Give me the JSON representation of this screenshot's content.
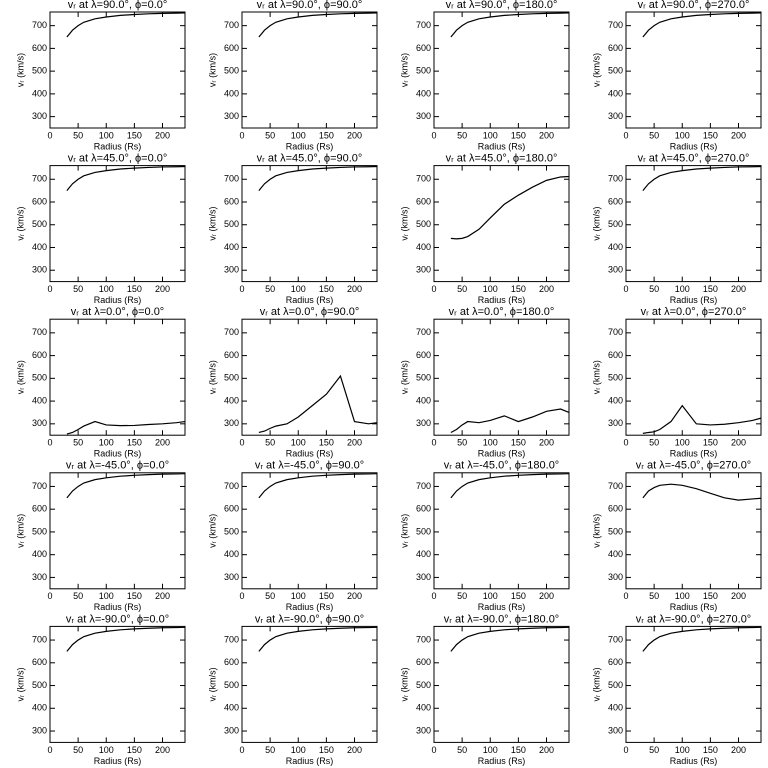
{
  "chart_data": [
    {
      "type": "line",
      "title": "vᵣ at λ=90.0°, ϕ=0.0°",
      "x_label": "Radius (Rs)",
      "y_label": "vᵣ (km/s)",
      "x": [
        30,
        40,
        50,
        60,
        80,
        100,
        125,
        150,
        175,
        200,
        225,
        240
      ],
      "series": [
        {
          "color": "#000000",
          "values": [
            650,
            680,
            700,
            715,
            730,
            738,
            745,
            749,
            752,
            754,
            755,
            756
          ]
        }
      ],
      "xlim": [
        0,
        240
      ],
      "ylim": [
        250,
        760
      ],
      "xticks": [
        0,
        50,
        100,
        150,
        200
      ],
      "yticks": [
        300,
        400,
        500,
        600,
        700
      ]
    },
    {
      "type": "line",
      "title": "vᵣ at λ=90.0°, ϕ=90.0°",
      "x_label": "Radius (Rs)",
      "y_label": "vᵣ (km/s)",
      "x": [
        30,
        40,
        50,
        60,
        80,
        100,
        125,
        150,
        175,
        200,
        225,
        240
      ],
      "series": [
        {
          "color": "#000000",
          "values": [
            650,
            680,
            700,
            715,
            730,
            738,
            745,
            749,
            752,
            754,
            755,
            756
          ]
        }
      ],
      "xlim": [
        0,
        240
      ],
      "ylim": [
        250,
        760
      ],
      "xticks": [
        0,
        50,
        100,
        150,
        200
      ],
      "yticks": [
        300,
        400,
        500,
        600,
        700
      ]
    },
    {
      "type": "line",
      "title": "vᵣ at λ=90.0°, ϕ=180.0°",
      "x_label": "Radius (Rs)",
      "y_label": "vᵣ (km/s)",
      "x": [
        30,
        40,
        50,
        60,
        80,
        100,
        125,
        150,
        175,
        200,
        225,
        240
      ],
      "series": [
        {
          "color": "#000000",
          "values": [
            650,
            680,
            700,
            715,
            730,
            738,
            745,
            749,
            752,
            754,
            755,
            756
          ]
        }
      ],
      "xlim": [
        0,
        240
      ],
      "ylim": [
        250,
        760
      ],
      "xticks": [
        0,
        50,
        100,
        150,
        200
      ],
      "yticks": [
        300,
        400,
        500,
        600,
        700
      ]
    },
    {
      "type": "line",
      "title": "vᵣ at λ=90.0°, ϕ=270.0°",
      "x_label": "Radius (Rs)",
      "y_label": "vᵣ (km/s)",
      "x": [
        30,
        40,
        50,
        60,
        80,
        100,
        125,
        150,
        175,
        200,
        225,
        240
      ],
      "series": [
        {
          "color": "#000000",
          "values": [
            650,
            680,
            700,
            715,
            730,
            738,
            745,
            749,
            752,
            754,
            755,
            756
          ]
        }
      ],
      "xlim": [
        0,
        240
      ],
      "ylim": [
        250,
        760
      ],
      "xticks": [
        0,
        50,
        100,
        150,
        200
      ],
      "yticks": [
        300,
        400,
        500,
        600,
        700
      ]
    },
    {
      "type": "line",
      "title": "vᵣ at λ=45.0°, ϕ=0.0°",
      "x_label": "Radius (Rs)",
      "y_label": "vᵣ (km/s)",
      "x": [
        30,
        40,
        50,
        60,
        80,
        100,
        125,
        150,
        175,
        200,
        225,
        240
      ],
      "series": [
        {
          "color": "#000000",
          "values": [
            650,
            680,
            700,
            715,
            730,
            738,
            745,
            749,
            752,
            754,
            755,
            756
          ]
        }
      ],
      "xlim": [
        0,
        240
      ],
      "ylim": [
        250,
        760
      ],
      "xticks": [
        0,
        50,
        100,
        150,
        200
      ],
      "yticks": [
        300,
        400,
        500,
        600,
        700
      ]
    },
    {
      "type": "line",
      "title": "vᵣ at λ=45.0°, ϕ=90.0°",
      "x_label": "Radius (Rs)",
      "y_label": "vᵣ (km/s)",
      "x": [
        30,
        40,
        50,
        60,
        80,
        100,
        125,
        150,
        175,
        200,
        225,
        240
      ],
      "series": [
        {
          "color": "#000000",
          "values": [
            650,
            680,
            700,
            715,
            730,
            738,
            745,
            749,
            752,
            754,
            755,
            756
          ]
        }
      ],
      "xlim": [
        0,
        240
      ],
      "ylim": [
        250,
        760
      ],
      "xticks": [
        0,
        50,
        100,
        150,
        200
      ],
      "yticks": [
        300,
        400,
        500,
        600,
        700
      ]
    },
    {
      "type": "line",
      "title": "vᵣ at λ=45.0°, ϕ=180.0°",
      "x_label": "Radius (Rs)",
      "y_label": "vᵣ (km/s)",
      "x": [
        30,
        40,
        50,
        60,
        80,
        100,
        125,
        150,
        175,
        200,
        225,
        240
      ],
      "series": [
        {
          "color": "#000000",
          "values": [
            440,
            438,
            440,
            448,
            480,
            530,
            590,
            630,
            665,
            695,
            710,
            712
          ]
        }
      ],
      "xlim": [
        0,
        240
      ],
      "ylim": [
        250,
        760
      ],
      "xticks": [
        0,
        50,
        100,
        150,
        200
      ],
      "yticks": [
        300,
        400,
        500,
        600,
        700
      ]
    },
    {
      "type": "line",
      "title": "vᵣ at λ=45.0°, ϕ=270.0°",
      "x_label": "Radius (Rs)",
      "y_label": "vᵣ (km/s)",
      "x": [
        30,
        40,
        50,
        60,
        80,
        100,
        125,
        150,
        175,
        200,
        225,
        240
      ],
      "series": [
        {
          "color": "#000000",
          "values": [
            650,
            680,
            700,
            715,
            730,
            738,
            745,
            749,
            752,
            754,
            755,
            756
          ]
        }
      ],
      "xlim": [
        0,
        240
      ],
      "ylim": [
        250,
        760
      ],
      "xticks": [
        0,
        50,
        100,
        150,
        200
      ],
      "yticks": [
        300,
        400,
        500,
        600,
        700
      ]
    },
    {
      "type": "line",
      "title": "vᵣ at λ=0.0°, ϕ=0.0°",
      "x_label": "Radius (Rs)",
      "y_label": "vᵣ (km/s)",
      "x": [
        30,
        40,
        50,
        60,
        80,
        100,
        125,
        150,
        175,
        200,
        225,
        240
      ],
      "series": [
        {
          "color": "#000000",
          "values": [
            255,
            262,
            275,
            290,
            310,
            295,
            292,
            293,
            297,
            300,
            305,
            310
          ]
        }
      ],
      "xlim": [
        0,
        240
      ],
      "ylim": [
        250,
        760
      ],
      "xticks": [
        0,
        50,
        100,
        150,
        200
      ],
      "yticks": [
        300,
        400,
        500,
        600,
        700
      ]
    },
    {
      "type": "line",
      "title": "vᵣ at λ=0.0°, ϕ=90.0°",
      "x_label": "Radius (Rs)",
      "y_label": "vᵣ (km/s)",
      "x": [
        30,
        40,
        50,
        60,
        80,
        100,
        125,
        150,
        175,
        200,
        225,
        240
      ],
      "series": [
        {
          "color": "#000000",
          "values": [
            262,
            268,
            280,
            290,
            300,
            330,
            380,
            430,
            510,
            310,
            300,
            305
          ]
        }
      ],
      "xlim": [
        0,
        240
      ],
      "ylim": [
        250,
        760
      ],
      "xticks": [
        0,
        50,
        100,
        150,
        200
      ],
      "yticks": [
        300,
        400,
        500,
        600,
        700
      ]
    },
    {
      "type": "line",
      "title": "vᵣ at λ=0.0°, ϕ=180.0°",
      "x_label": "Radius (Rs)",
      "y_label": "vᵣ (km/s)",
      "x": [
        30,
        40,
        50,
        60,
        80,
        100,
        125,
        150,
        175,
        200,
        225,
        240
      ],
      "series": [
        {
          "color": "#000000",
          "values": [
            262,
            275,
            295,
            310,
            305,
            315,
            335,
            310,
            330,
            355,
            365,
            350
          ]
        }
      ],
      "xlim": [
        0,
        240
      ],
      "ylim": [
        250,
        760
      ],
      "xticks": [
        0,
        50,
        100,
        150,
        200
      ],
      "yticks": [
        300,
        400,
        500,
        600,
        700
      ]
    },
    {
      "type": "line",
      "title": "vᵣ at λ=0.0°, ϕ=270.0°",
      "x_label": "Radius (Rs)",
      "y_label": "vᵣ (km/s)",
      "x": [
        30,
        40,
        50,
        60,
        80,
        100,
        125,
        150,
        175,
        200,
        225,
        240
      ],
      "series": [
        {
          "color": "#000000",
          "values": [
            258,
            262,
            265,
            275,
            310,
            380,
            300,
            295,
            298,
            305,
            315,
            325
          ]
        }
      ],
      "xlim": [
        0,
        240
      ],
      "ylim": [
        250,
        760
      ],
      "xticks": [
        0,
        50,
        100,
        150,
        200
      ],
      "yticks": [
        300,
        400,
        500,
        600,
        700
      ]
    },
    {
      "type": "line",
      "title": "vᵣ at λ=-45.0°, ϕ=0.0°",
      "x_label": "Radius (Rs)",
      "y_label": "vᵣ (km/s)",
      "x": [
        30,
        40,
        50,
        60,
        80,
        100,
        125,
        150,
        175,
        200,
        225,
        240
      ],
      "series": [
        {
          "color": "#000000",
          "values": [
            650,
            680,
            700,
            715,
            730,
            738,
            745,
            749,
            752,
            754,
            755,
            756
          ]
        }
      ],
      "xlim": [
        0,
        240
      ],
      "ylim": [
        250,
        760
      ],
      "xticks": [
        0,
        50,
        100,
        150,
        200
      ],
      "yticks": [
        300,
        400,
        500,
        600,
        700
      ]
    },
    {
      "type": "line",
      "title": "vᵣ at λ=-45.0°, ϕ=90.0°",
      "x_label": "Radius (Rs)",
      "y_label": "vᵣ (km/s)",
      "x": [
        30,
        40,
        50,
        60,
        80,
        100,
        125,
        150,
        175,
        200,
        225,
        240
      ],
      "series": [
        {
          "color": "#000000",
          "values": [
            650,
            680,
            700,
            715,
            730,
            738,
            745,
            749,
            752,
            754,
            755,
            756
          ]
        }
      ],
      "xlim": [
        0,
        240
      ],
      "ylim": [
        250,
        760
      ],
      "xticks": [
        0,
        50,
        100,
        150,
        200
      ],
      "yticks": [
        300,
        400,
        500,
        600,
        700
      ]
    },
    {
      "type": "line",
      "title": "vᵣ at λ=-45.0°, ϕ=180.0°",
      "x_label": "Radius (Rs)",
      "y_label": "vᵣ (km/s)",
      "x": [
        30,
        40,
        50,
        60,
        80,
        100,
        125,
        150,
        175,
        200,
        225,
        240
      ],
      "series": [
        {
          "color": "#000000",
          "values": [
            650,
            680,
            700,
            715,
            730,
            738,
            745,
            749,
            752,
            754,
            755,
            756
          ]
        }
      ],
      "xlim": [
        0,
        240
      ],
      "ylim": [
        250,
        760
      ],
      "xticks": [
        0,
        50,
        100,
        150,
        200
      ],
      "yticks": [
        300,
        400,
        500,
        600,
        700
      ]
    },
    {
      "type": "line",
      "title": "vᵣ at λ=-45.0°, ϕ=270.0°",
      "x_label": "Radius (Rs)",
      "y_label": "vᵣ (km/s)",
      "x": [
        30,
        40,
        50,
        60,
        80,
        100,
        125,
        150,
        175,
        200,
        225,
        240
      ],
      "series": [
        {
          "color": "#000000",
          "values": [
            650,
            680,
            695,
            705,
            710,
            705,
            690,
            670,
            650,
            640,
            645,
            648
          ]
        }
      ],
      "xlim": [
        0,
        240
      ],
      "ylim": [
        250,
        760
      ],
      "xticks": [
        0,
        50,
        100,
        150,
        200
      ],
      "yticks": [
        300,
        400,
        500,
        600,
        700
      ]
    },
    {
      "type": "line",
      "title": "vᵣ at λ=-90.0°, ϕ=0.0°",
      "x_label": "Radius (Rs)",
      "y_label": "vᵣ (km/s)",
      "x": [
        30,
        40,
        50,
        60,
        80,
        100,
        125,
        150,
        175,
        200,
        225,
        240
      ],
      "series": [
        {
          "color": "#000000",
          "values": [
            650,
            680,
            700,
            715,
            730,
            738,
            745,
            749,
            752,
            754,
            755,
            756
          ]
        }
      ],
      "xlim": [
        0,
        240
      ],
      "ylim": [
        250,
        760
      ],
      "xticks": [
        0,
        50,
        100,
        150,
        200
      ],
      "yticks": [
        300,
        400,
        500,
        600,
        700
      ]
    },
    {
      "type": "line",
      "title": "vᵣ at λ=-90.0°, ϕ=90.0°",
      "x_label": "Radius (Rs)",
      "y_label": "vᵣ (km/s)",
      "x": [
        30,
        40,
        50,
        60,
        80,
        100,
        125,
        150,
        175,
        200,
        225,
        240
      ],
      "series": [
        {
          "color": "#000000",
          "values": [
            650,
            680,
            700,
            715,
            730,
            738,
            745,
            749,
            752,
            754,
            755,
            756
          ]
        }
      ],
      "xlim": [
        0,
        240
      ],
      "ylim": [
        250,
        760
      ],
      "xticks": [
        0,
        50,
        100,
        150,
        200
      ],
      "yticks": [
        300,
        400,
        500,
        600,
        700
      ]
    },
    {
      "type": "line",
      "title": "vᵣ at λ=-90.0°, ϕ=180.0°",
      "x_label": "Radius (Rs)",
      "y_label": "vᵣ (km/s)",
      "x": [
        30,
        40,
        50,
        60,
        80,
        100,
        125,
        150,
        175,
        200,
        225,
        240
      ],
      "series": [
        {
          "color": "#000000",
          "values": [
            650,
            680,
            700,
            715,
            730,
            738,
            745,
            749,
            752,
            754,
            755,
            756
          ]
        }
      ],
      "xlim": [
        0,
        240
      ],
      "ylim": [
        250,
        760
      ],
      "xticks": [
        0,
        50,
        100,
        150,
        200
      ],
      "yticks": [
        300,
        400,
        500,
        600,
        700
      ]
    },
    {
      "type": "line",
      "title": "vᵣ at λ=-90.0°, ϕ=270.0°",
      "x_label": "Radius (Rs)",
      "y_label": "vᵣ (km/s)",
      "x": [
        30,
        40,
        50,
        60,
        80,
        100,
        125,
        150,
        175,
        200,
        225,
        240
      ],
      "series": [
        {
          "color": "#000000",
          "values": [
            650,
            680,
            700,
            715,
            730,
            738,
            745,
            749,
            752,
            754,
            755,
            756
          ]
        }
      ],
      "xlim": [
        0,
        240
      ],
      "ylim": [
        250,
        760
      ],
      "xticks": [
        0,
        50,
        100,
        150,
        200
      ],
      "yticks": [
        300,
        400,
        500,
        600,
        700
      ]
    }
  ]
}
